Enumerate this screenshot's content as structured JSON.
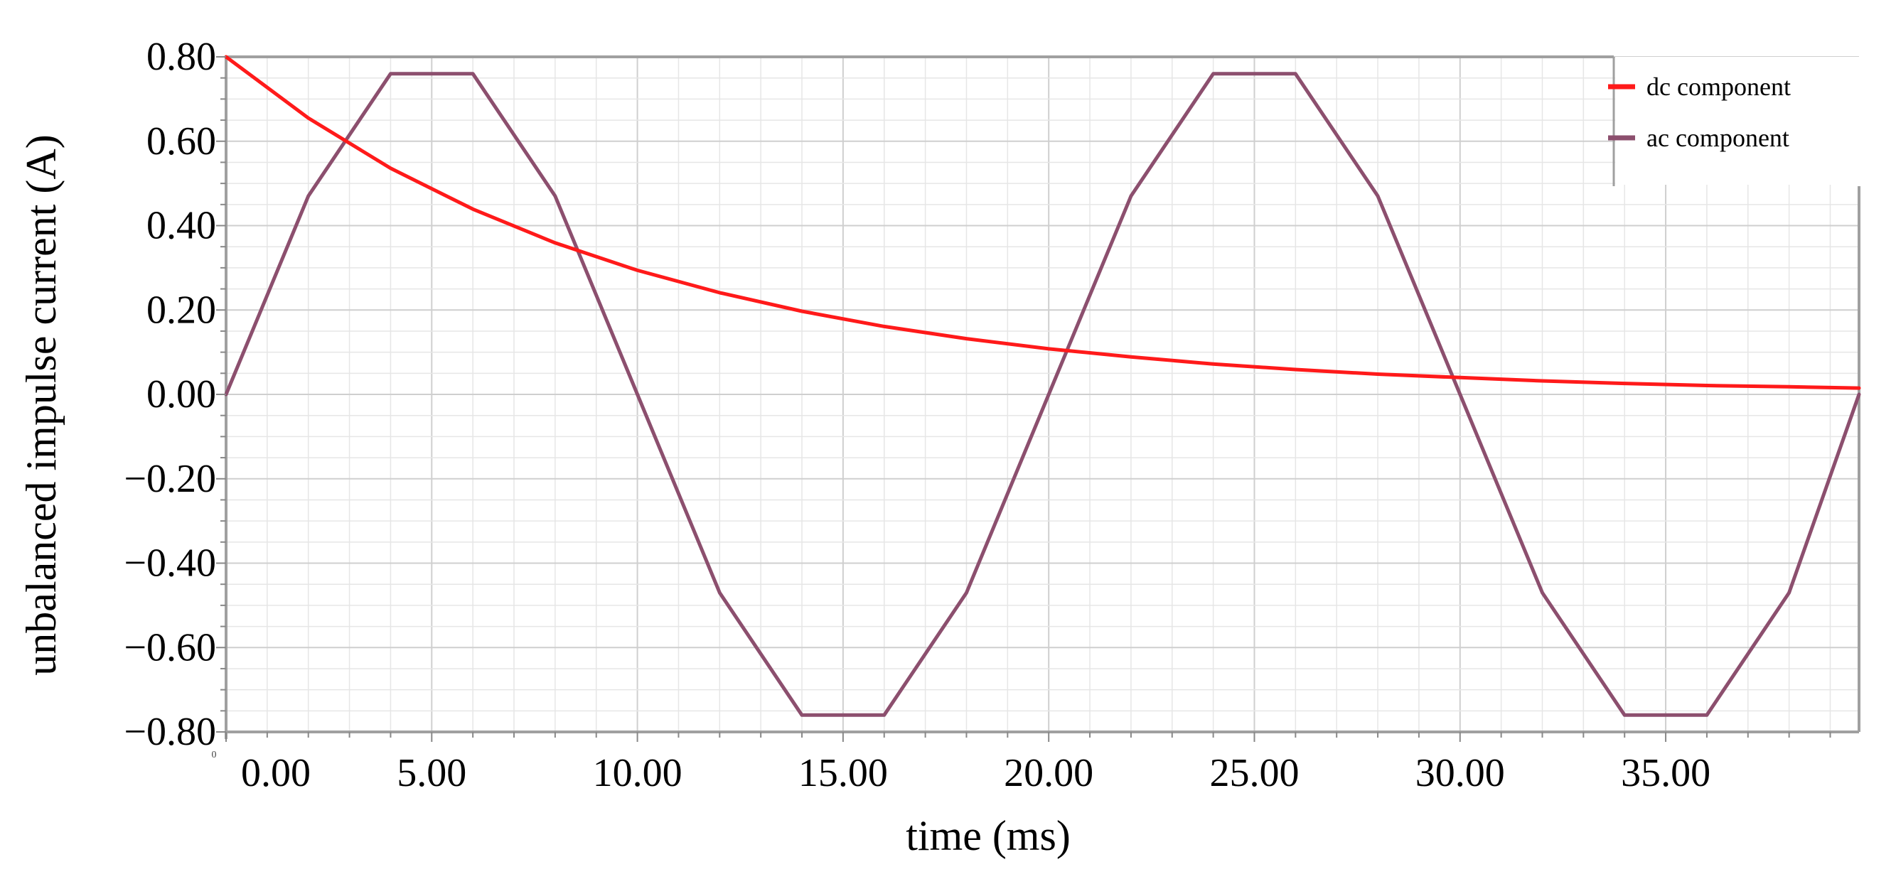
{
  "chart_data": {
    "type": "line",
    "xlabel": "time (ms)",
    "ylabel": "unbalanced impulse current (A)",
    "xlim": [
      0,
      39.7
    ],
    "ylim": [
      -0.8,
      0.8
    ],
    "x_ticks": [
      0,
      5,
      10,
      15,
      20,
      25,
      30,
      35
    ],
    "x_tick_labels": [
      "0.00",
      "5.00",
      "10.00",
      "15.00",
      "20.00",
      "25.00",
      "30.00",
      "35.00"
    ],
    "y_ticks": [
      0.8,
      0.6,
      0.4,
      0.2,
      0.0,
      -0.2,
      -0.4,
      -0.6,
      -0.8
    ],
    "y_tick_labels": [
      "0.80",
      "0.60",
      "0.40",
      "0.20",
      "0.00",
      "−0.20",
      "−0.40",
      "−0.60",
      "−0.80"
    ],
    "corner_label": "0",
    "grid": true,
    "legend_position": "top-right",
    "series": [
      {
        "name": "dc component",
        "color": "#ff1a1a",
        "x": [
          0,
          2,
          4,
          6,
          8,
          10,
          12,
          14,
          16,
          18,
          20,
          22,
          24,
          26,
          28,
          30,
          32,
          34,
          36,
          38,
          39.7
        ],
        "y": [
          0.8,
          0.655,
          0.536,
          0.439,
          0.359,
          0.294,
          0.241,
          0.197,
          0.161,
          0.132,
          0.108,
          0.089,
          0.072,
          0.059,
          0.048,
          0.04,
          0.032,
          0.026,
          0.021,
          0.018,
          0.015
        ]
      },
      {
        "name": "ac component",
        "color": "#8c4f6e",
        "x": [
          0,
          2,
          4,
          6,
          8,
          10,
          12,
          14,
          16,
          18,
          20,
          22,
          24,
          26,
          28,
          30,
          32,
          34,
          36,
          38,
          39.7
        ],
        "y": [
          0.0,
          0.47,
          0.76,
          0.76,
          0.47,
          0.0,
          -0.47,
          -0.76,
          -0.76,
          -0.47,
          0.0,
          0.47,
          0.76,
          0.76,
          0.47,
          0.0,
          -0.47,
          -0.76,
          -0.76,
          -0.47,
          0.0
        ]
      }
    ]
  }
}
